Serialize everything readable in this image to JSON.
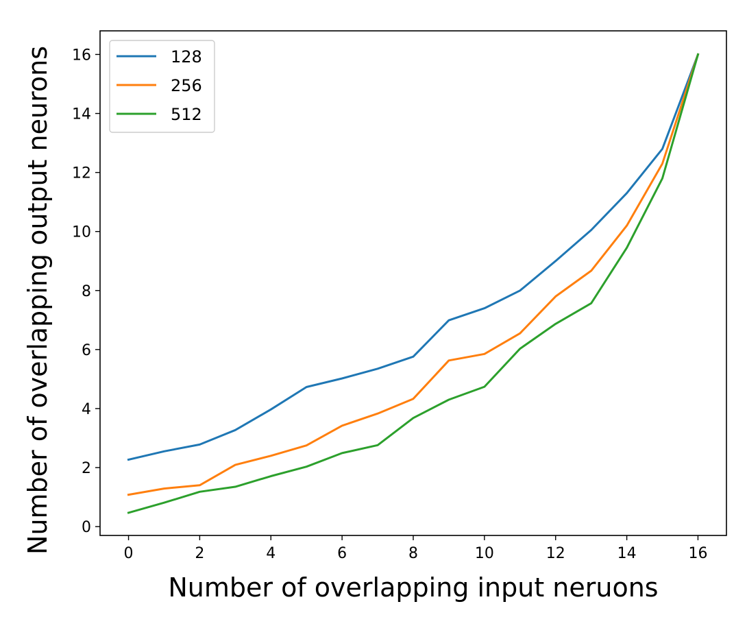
{
  "chart_data": {
    "type": "line",
    "title": "",
    "xlabel": "Number of overlapping input neruons",
    "ylabel": "Number of overlapping output neurons",
    "xlim": [
      -0.8,
      16.8
    ],
    "ylim": [
      -0.3,
      16.8
    ],
    "xticks": [
      0,
      2,
      4,
      6,
      8,
      10,
      12,
      14,
      16
    ],
    "yticks": [
      0,
      2,
      4,
      6,
      8,
      10,
      12,
      14,
      16
    ],
    "grid": false,
    "legend_position": "upper-left",
    "x": [
      0,
      1,
      2,
      3,
      4,
      5,
      6,
      7,
      8,
      9,
      10,
      11,
      12,
      13,
      14,
      15,
      16
    ],
    "series": [
      {
        "name": "128",
        "color": "#1f77b4",
        "values": [
          2.27,
          2.55,
          2.78,
          3.27,
          3.97,
          4.73,
          5.02,
          5.35,
          5.76,
          6.99,
          7.4,
          8.0,
          9.0,
          10.05,
          11.3,
          12.8,
          16.0
        ]
      },
      {
        "name": "256",
        "color": "#ff7f0e",
        "values": [
          1.08,
          1.29,
          1.4,
          2.09,
          2.4,
          2.75,
          3.42,
          3.83,
          4.33,
          5.63,
          5.85,
          6.55,
          7.8,
          8.67,
          10.2,
          12.3,
          16.0
        ]
      },
      {
        "name": "512",
        "color": "#2ca02c",
        "values": [
          0.47,
          0.81,
          1.18,
          1.35,
          1.71,
          2.03,
          2.49,
          2.76,
          3.68,
          4.3,
          4.74,
          6.03,
          6.87,
          7.57,
          9.45,
          11.8,
          16.0
        ]
      }
    ]
  }
}
